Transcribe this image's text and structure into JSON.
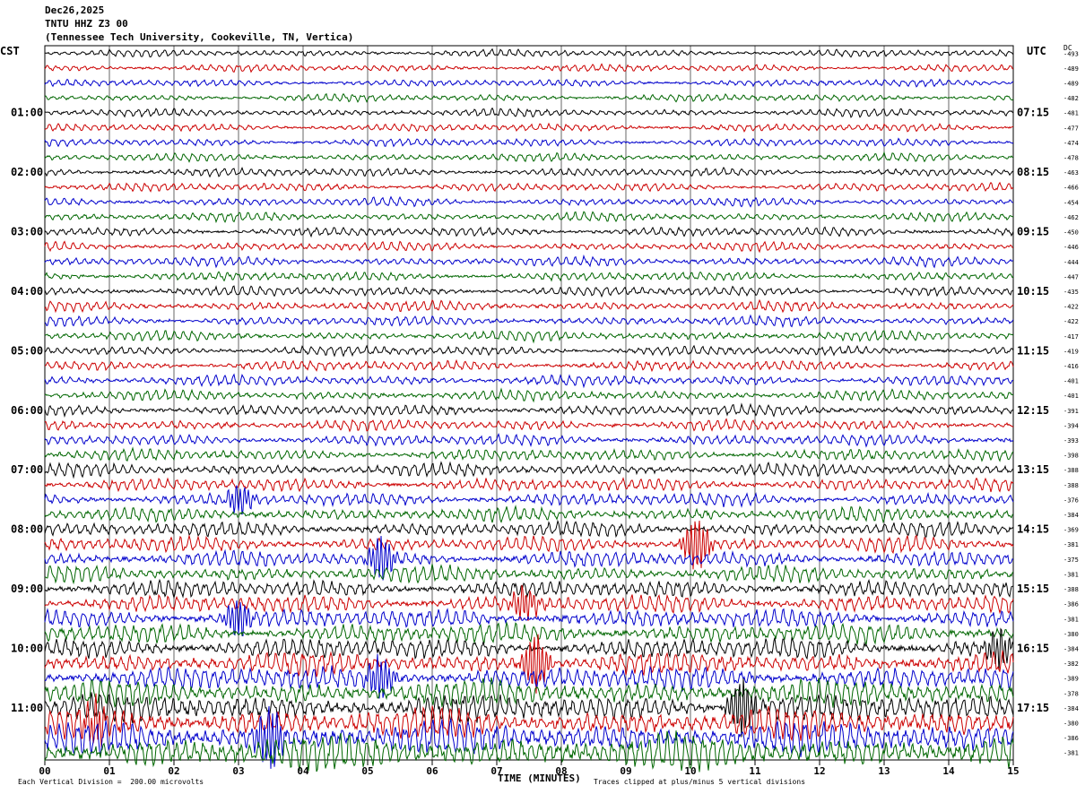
{
  "header": {
    "date": "Dec26,2025",
    "station": "TNTU HHZ Z3 00",
    "location": "(Tennessee Tech University, Cookeville, TN, Vertica)"
  },
  "left_tz": "CST",
  "right_tz": "UTC",
  "dc_label": "DC",
  "footer": {
    "scale": "Each Vertical Division =  200.00 microvolts",
    "xlabel": "TIME (MINUTES)",
    "clip": "Traces clipped at plus/minus 5 vertical divisions"
  },
  "colors": {
    "trace_cycle": [
      "#000000",
      "#cc0000",
      "#0000cc",
      "#006600"
    ],
    "grid": "#000000"
  },
  "chart_data": {
    "type": "line",
    "x_ticks": [
      "00",
      "01",
      "02",
      "03",
      "04",
      "05",
      "06",
      "07",
      "08",
      "09",
      "10",
      "11",
      "12",
      "13",
      "14",
      "15"
    ],
    "xlim": [
      0,
      15
    ],
    "left_time_labels": [
      "01:00",
      "02:00",
      "03:00",
      "04:00",
      "05:00",
      "06:00",
      "07:00",
      "08:00",
      "09:00",
      "10:00",
      "11:00"
    ],
    "right_time_labels": [
      "07:15",
      "08:15",
      "09:15",
      "10:15",
      "11:15",
      "12:15",
      "13:15",
      "14:15",
      "15:15",
      "16:15",
      "17:15"
    ],
    "dc_offsets": [
      -493,
      -489,
      -489,
      -482,
      -481,
      -477,
      -474,
      -478,
      -463,
      -466,
      -454,
      -462,
      -450,
      -446,
      -444,
      -447,
      -435,
      -422,
      -422,
      -417,
      -419,
      -416,
      -401,
      -401,
      -391,
      -394,
      -393,
      -398,
      -388,
      -388,
      -376,
      -384,
      -369,
      -381,
      -375,
      -381,
      -388,
      -386,
      -381,
      -380,
      -384,
      -382,
      -389,
      -378,
      -384,
      -380,
      -386,
      -381
    ],
    "amplitude_by_row": [
      0.22,
      0.22,
      0.22,
      0.22,
      0.24,
      0.24,
      0.24,
      0.24,
      0.26,
      0.26,
      0.26,
      0.26,
      0.28,
      0.28,
      0.28,
      0.28,
      0.3,
      0.3,
      0.3,
      0.3,
      0.3,
      0.32,
      0.32,
      0.32,
      0.34,
      0.34,
      0.34,
      0.36,
      0.38,
      0.4,
      0.4,
      0.42,
      0.44,
      0.46,
      0.48,
      0.5,
      0.52,
      0.55,
      0.58,
      0.6,
      0.64,
      0.68,
      0.72,
      0.78,
      0.85,
      0.92,
      1.0,
      1.1
    ],
    "events": [
      {
        "row": 30,
        "minute": 3.0,
        "amp": 0.6
      },
      {
        "row": 33,
        "minute": 10.1,
        "amp": 1.2
      },
      {
        "row": 34,
        "minute": 5.2,
        "amp": 1.0
      },
      {
        "row": 37,
        "minute": 7.4,
        "amp": 0.8
      },
      {
        "row": 38,
        "minute": 3.0,
        "amp": 0.8
      },
      {
        "row": 40,
        "minute": 14.8,
        "amp": 0.9
      },
      {
        "row": 41,
        "minute": 7.6,
        "amp": 1.3
      },
      {
        "row": 42,
        "minute": 5.2,
        "amp": 1.0
      },
      {
        "row": 44,
        "minute": 10.8,
        "amp": 1.3
      },
      {
        "row": 45,
        "minute": 0.8,
        "amp": 1.1
      },
      {
        "row": 46,
        "minute": 3.5,
        "amp": 1.3
      }
    ]
  }
}
